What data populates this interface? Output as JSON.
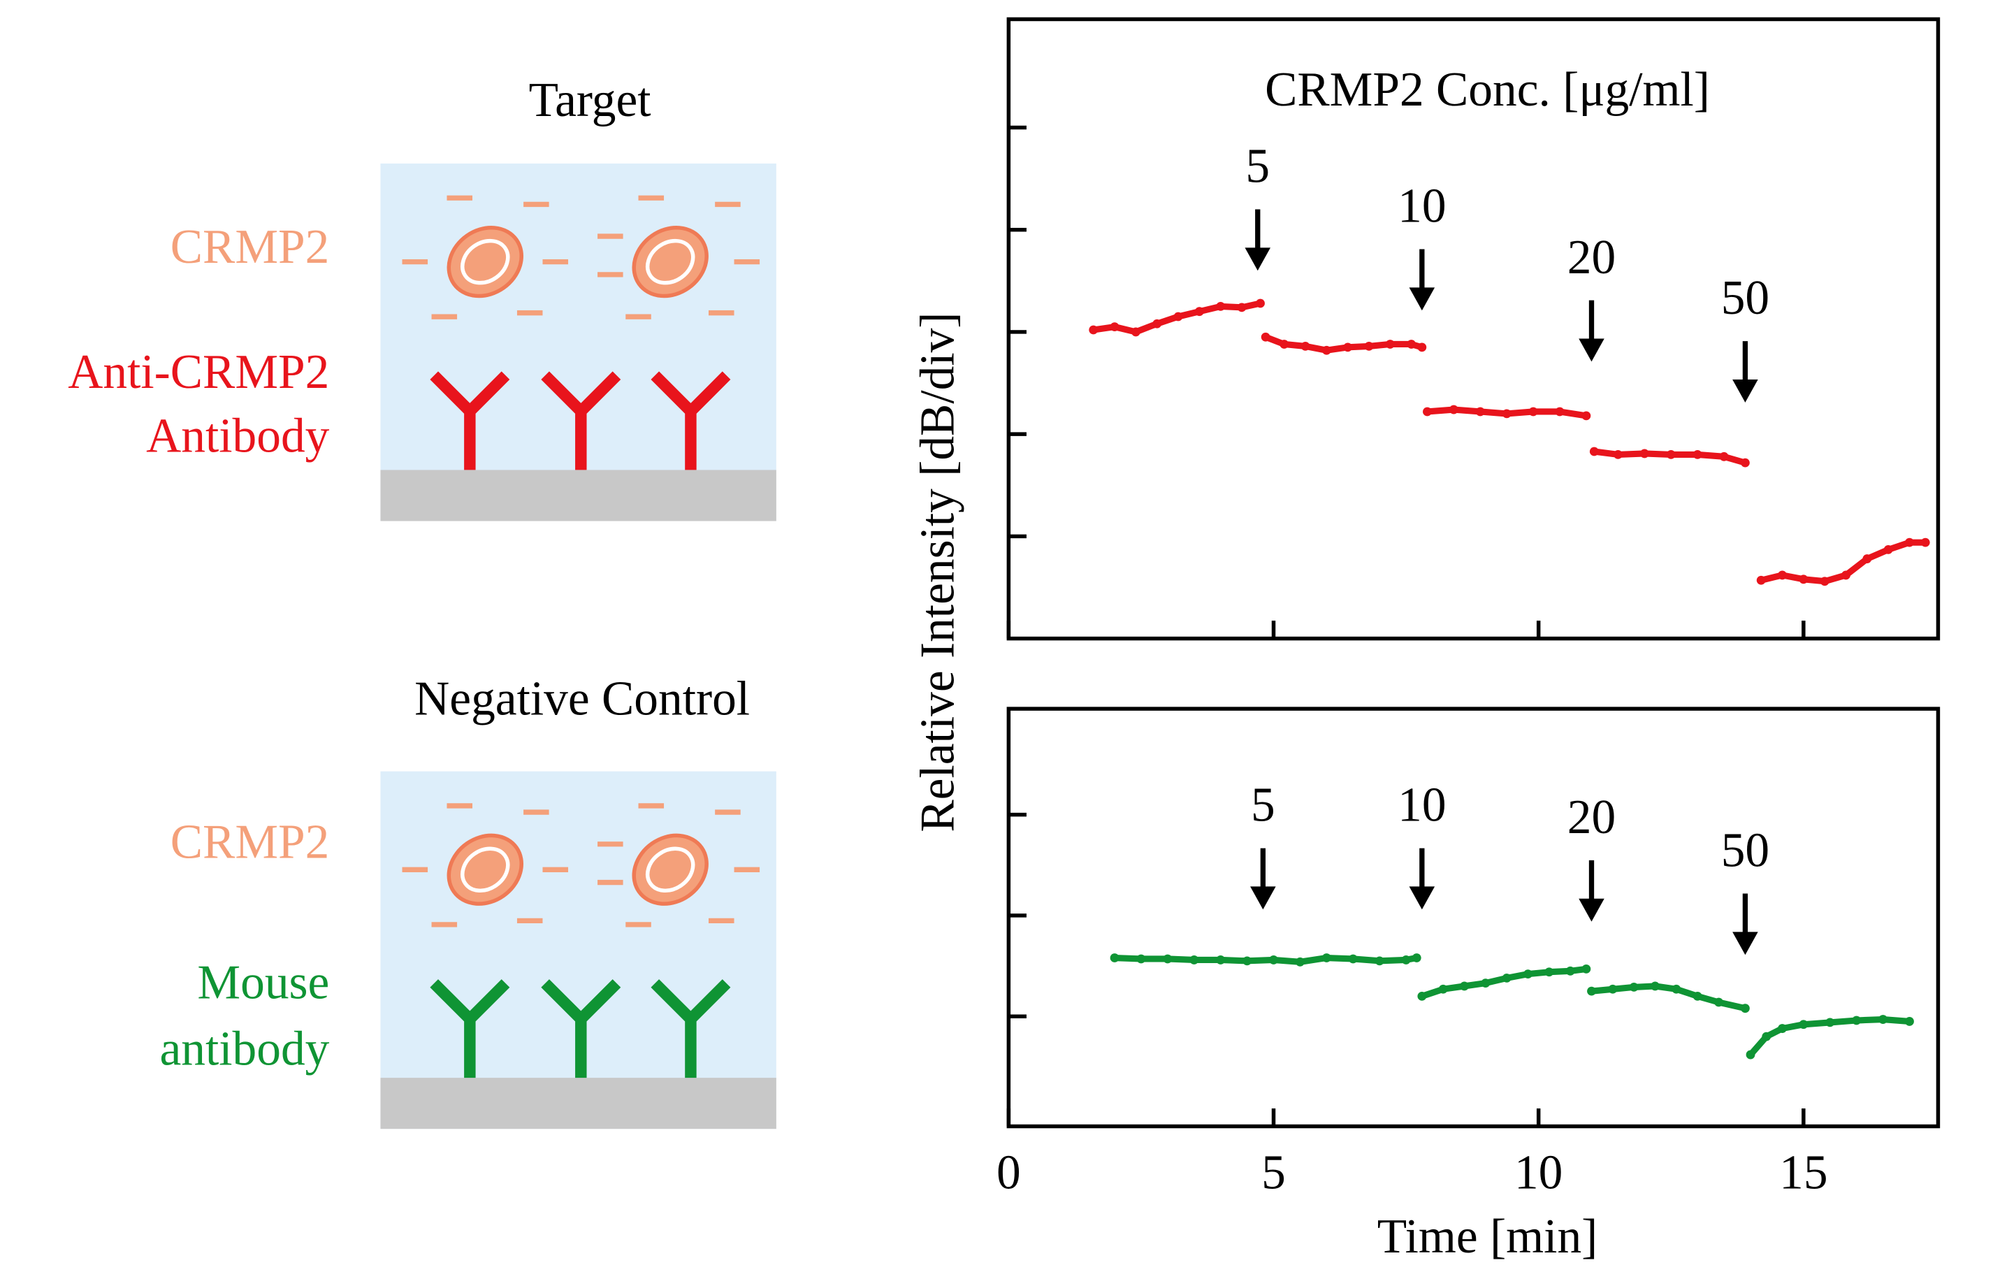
{
  "diagrams": [
    {
      "title": "Target",
      "analyte": "CRMP2",
      "receptor_lines": [
        "Anti-CRMP2",
        "Antibody"
      ]
    },
    {
      "title": "Negative Control",
      "analyte": "CRMP2",
      "receptor_lines": [
        "Mouse",
        "antibody"
      ]
    }
  ],
  "chart_data": [
    {
      "type": "scatter",
      "title": "CRMP2 Conc. [μg/ml]",
      "ylabel": "Relative Intensity [dB/div]",
      "xlim": [
        0,
        17.54
      ],
      "xticks": [
        0,
        5,
        10,
        15
      ],
      "ylim": [
        0,
        6.06
      ],
      "yticks": [
        1,
        2,
        3,
        4,
        5
      ],
      "series": [
        {
          "name": "Anti-CRMP2 Antibody",
          "color": "#e8141c",
          "x": [
            1.6,
            2.0,
            2.4,
            2.8,
            3.2,
            3.6,
            4.0,
            4.4,
            4.75,
            null,
            4.85,
            5.2,
            5.6,
            6.0,
            6.4,
            6.8,
            7.2,
            7.6,
            7.8,
            null,
            7.9,
            8.4,
            8.9,
            9.4,
            9.9,
            10.4,
            10.9,
            null,
            11.05,
            11.5,
            12.0,
            12.5,
            13.0,
            13.5,
            13.9,
            null,
            14.2,
            14.6,
            15.0,
            15.4,
            15.8,
            16.2,
            16.6,
            17.0,
            17.3
          ],
          "values": [
            3.02,
            3.05,
            3.0,
            3.08,
            3.15,
            3.2,
            3.25,
            3.24,
            3.28,
            null,
            2.95,
            2.88,
            2.86,
            2.82,
            2.85,
            2.86,
            2.88,
            2.88,
            2.85,
            null,
            2.22,
            2.24,
            2.22,
            2.2,
            2.22,
            2.22,
            2.18,
            null,
            1.83,
            1.8,
            1.81,
            1.8,
            1.8,
            1.78,
            1.72,
            null,
            0.57,
            0.62,
            0.58,
            0.56,
            0.62,
            0.78,
            0.87,
            0.94,
            0.94
          ]
        }
      ],
      "annotations": [
        {
          "text": "5",
          "x": 4.7,
          "y": 3.6
        },
        {
          "text": "10",
          "x": 7.8,
          "y": 3.21
        },
        {
          "text": "20",
          "x": 11.0,
          "y": 2.71
        },
        {
          "text": "50",
          "x": 13.9,
          "y": 2.31
        }
      ]
    },
    {
      "type": "scatter",
      "xlabel": "Time [min]",
      "xlim": [
        0,
        17.54
      ],
      "xticks": [
        0,
        5,
        10,
        15
      ],
      "ylim": [
        -1.09,
        3.05
      ],
      "yticks": [
        0,
        1,
        2
      ],
      "series": [
        {
          "name": "Mouse antibody",
          "color": "#0f9434",
          "x": [
            2.0,
            2.5,
            3.0,
            3.5,
            4.0,
            4.5,
            5.0,
            5.5,
            6.0,
            6.5,
            7.0,
            7.5,
            7.7,
            null,
            7.8,
            8.2,
            8.6,
            9.0,
            9.4,
            9.8,
            10.2,
            10.6,
            10.9,
            null,
            11.0,
            11.4,
            11.8,
            12.2,
            12.6,
            13.0,
            13.4,
            13.9,
            null,
            14.0,
            14.3,
            14.6,
            15.0,
            15.5,
            16.0,
            16.5,
            17.0
          ],
          "values": [
            0.58,
            0.57,
            0.57,
            0.56,
            0.56,
            0.55,
            0.56,
            0.54,
            0.58,
            0.57,
            0.55,
            0.56,
            0.58,
            null,
            0.2,
            0.27,
            0.3,
            0.33,
            0.38,
            0.42,
            0.44,
            0.45,
            0.47,
            null,
            0.25,
            0.27,
            0.29,
            0.3,
            0.27,
            0.2,
            0.14,
            0.08,
            null,
            -0.38,
            -0.2,
            -0.12,
            -0.08,
            -0.06,
            -0.04,
            -0.03,
            -0.05
          ]
        }
      ],
      "annotations": [
        {
          "text": "5",
          "x": 4.8,
          "y": 1.06
        },
        {
          "text": "10",
          "x": 7.8,
          "y": 1.06
        },
        {
          "text": "20",
          "x": 11.0,
          "y": 0.94
        },
        {
          "text": "50",
          "x": 13.9,
          "y": 0.61
        }
      ]
    }
  ]
}
